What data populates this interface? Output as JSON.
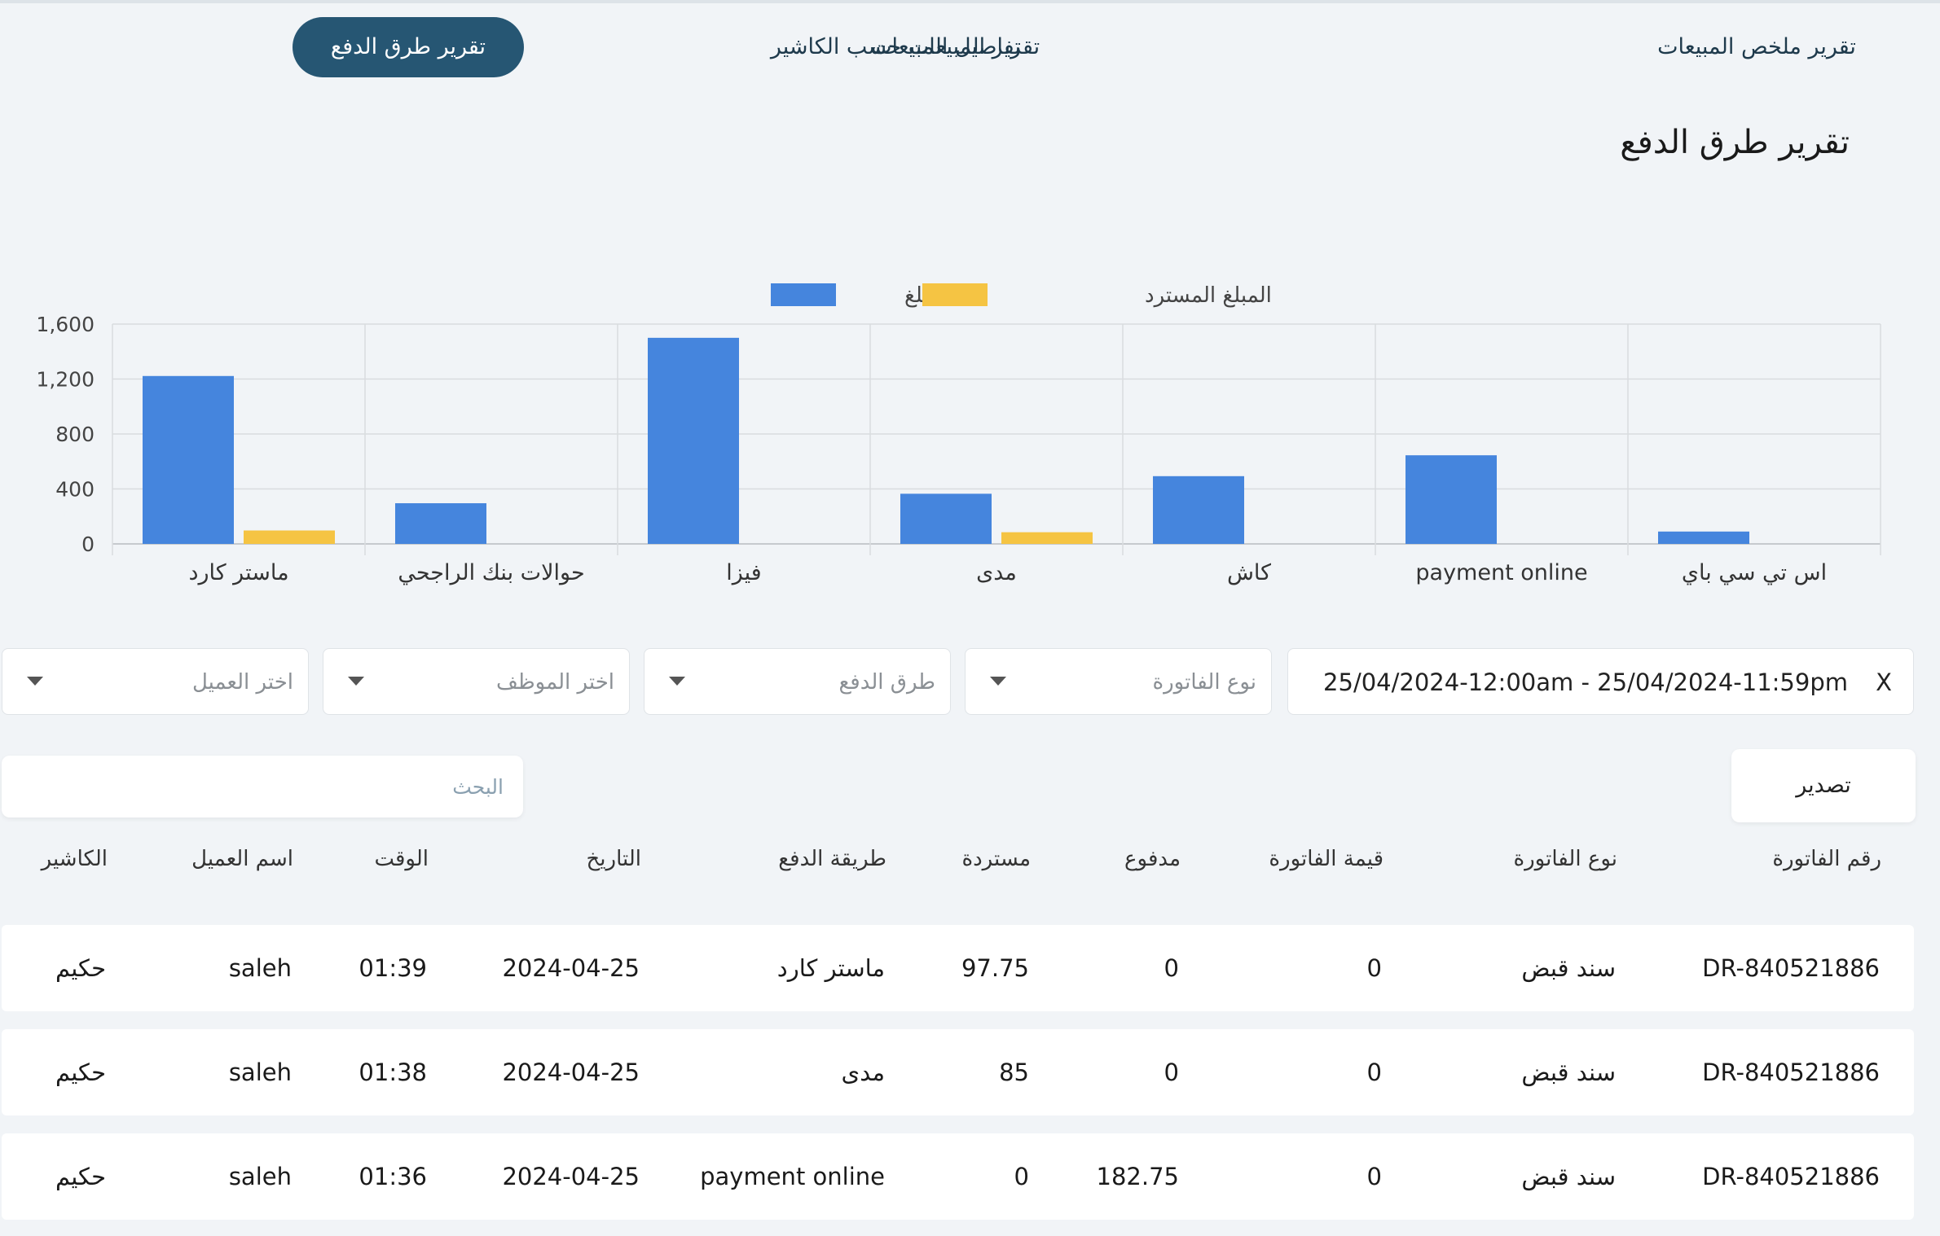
{
  "tabs": [
    {
      "label": "تقرير ملخص المبيعات",
      "active": false
    },
    {
      "label": "تفاصيل المبيعات",
      "active": false
    },
    {
      "label": "تقرير طرق الدفع",
      "active": true
    },
    {
      "label": "تقرير المبيعات حسب الكاشير",
      "active": false
    }
  ],
  "page_title": "تقرير طرق الدفع",
  "chart_data": {
    "type": "bar",
    "categories": [
      "ماستر كارد",
      "حوالات بنك الراجحي",
      "فيزا",
      "مدى",
      "كاش",
      "payment online",
      "اس تي سي باي"
    ],
    "series": [
      {
        "name": "المبلغ",
        "color": "#4585dd",
        "values": [
          1222,
          296,
          1500,
          365,
          493,
          645,
          90
        ]
      },
      {
        "name": "المبلغ المسترد",
        "color": "#f5c443",
        "values": [
          97.75,
          0,
          0,
          85,
          0,
          0,
          0
        ]
      }
    ],
    "yticks": [
      "0",
      "400",
      "800",
      "1,200",
      "1,600"
    ],
    "ylim": [
      0,
      1600
    ],
    "grid": true,
    "legend_position": "top-center"
  },
  "filters": {
    "date_range": "25/04/2024-12:00am - 25/04/2024-11:59pm",
    "clear_label": "X",
    "invoice_type": "نوع الفاتورة",
    "payment_method": "طرق الدفع",
    "employee": "اختر الموظف",
    "customer": "اختر العميل"
  },
  "search": {
    "placeholder": "البحث"
  },
  "export_label": "تصدير",
  "table": {
    "headers": [
      "رقم الفاتورة",
      "نوع الفاتورة",
      "قيمة الفاتورة",
      "مدفوع",
      "مستردة",
      "طريقة الدفع",
      "التاريخ",
      "الوقت",
      "اسم العميل",
      "الكاشير"
    ],
    "rows": [
      [
        "DR-840521886",
        "سند قبض",
        "0",
        "0",
        "97.75",
        "ماستر كارد",
        "2024-04-25",
        "01:39",
        "saleh",
        "حكيم"
      ],
      [
        "DR-840521886",
        "سند قبض",
        "0",
        "0",
        "85",
        "مدى",
        "2024-04-25",
        "01:38",
        "saleh",
        "حكيم"
      ],
      [
        "DR-840521886",
        "سند قبض",
        "0",
        "182.75",
        "0",
        "payment online",
        "2024-04-25",
        "01:36",
        "saleh",
        "حكيم"
      ]
    ]
  }
}
